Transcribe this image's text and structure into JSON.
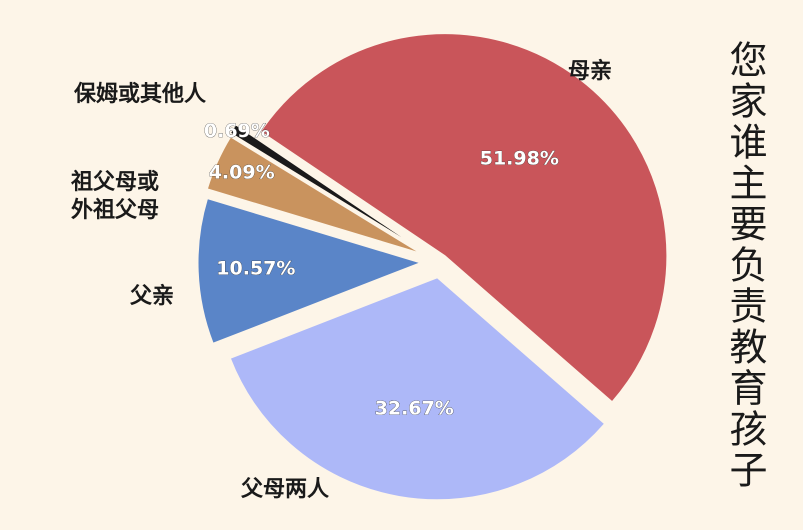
{
  "chart_data": {
    "type": "pie",
    "title": "您家谁主要负责教育孩子",
    "categories": [
      "母亲",
      "父母两人",
      "父亲",
      "祖父母或\n外祖父母",
      "保姆或其他人"
    ],
    "values": [
      51.98,
      32.67,
      10.57,
      4.09,
      0.69
    ],
    "value_labels": [
      "51.98%",
      "32.67%",
      "10.57%",
      "4.09%",
      "0.69%"
    ],
    "colors": [
      "#c9555a",
      "#adb8f8",
      "#5a85c8",
      "#c9935e",
      "#1a1a1a"
    ]
  }
}
